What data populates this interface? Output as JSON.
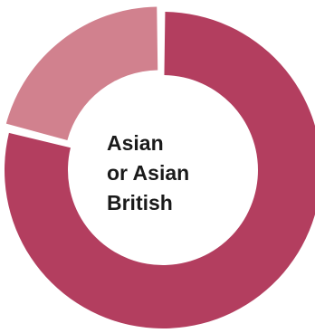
{
  "chart_data": {
    "type": "pie",
    "style": "donut",
    "center_label_lines": [
      "Asian",
      "or Asian",
      "British"
    ],
    "slices": [
      {
        "value": 79,
        "color": "#b33e5f"
      },
      {
        "value": 21,
        "color": "#d1818e"
      }
    ]
  }
}
